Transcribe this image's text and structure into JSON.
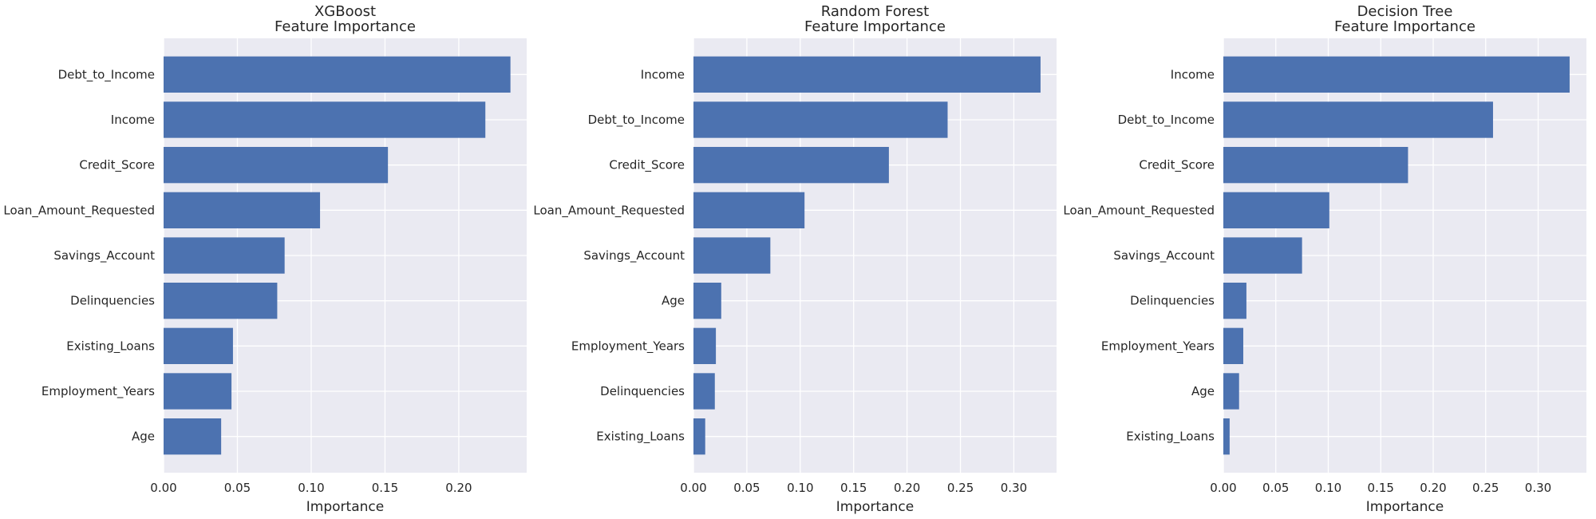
{
  "chart_data": [
    {
      "type": "bar",
      "orientation": "horizontal",
      "title": [
        "XGBoost",
        "Feature Importance"
      ],
      "xlabel": "Importance",
      "ylabel": "",
      "xlim": [
        0,
        0.246
      ],
      "xticks": [
        0.0,
        0.05,
        0.1,
        0.15,
        0.2
      ],
      "xtick_labels": [
        "0.00",
        "0.05",
        "0.10",
        "0.15",
        "0.20"
      ],
      "grid": true,
      "bar_color": "#4c72b0",
      "categories": [
        "Debt_to_Income",
        "Income",
        "Credit_Score",
        "Loan_Amount_Requested",
        "Savings_Account",
        "Delinquencies",
        "Existing_Loans",
        "Employment_Years",
        "Age"
      ],
      "values": [
        0.235,
        0.218,
        0.152,
        0.106,
        0.082,
        0.077,
        0.047,
        0.046,
        0.039
      ]
    },
    {
      "type": "bar",
      "orientation": "horizontal",
      "title": [
        "Random Forest",
        "Feature Importance"
      ],
      "xlabel": "Importance",
      "ylabel": "",
      "xlim": [
        0,
        0.34
      ],
      "xticks": [
        0.0,
        0.05,
        0.1,
        0.15,
        0.2,
        0.25,
        0.3
      ],
      "xtick_labels": [
        "0.00",
        "0.05",
        "0.10",
        "0.15",
        "0.20",
        "0.25",
        "0.30"
      ],
      "grid": true,
      "bar_color": "#4c72b0",
      "categories": [
        "Income",
        "Debt_to_Income",
        "Credit_Score",
        "Loan_Amount_Requested",
        "Savings_Account",
        "Age",
        "Employment_Years",
        "Delinquencies",
        "Existing_Loans"
      ],
      "values": [
        0.325,
        0.238,
        0.183,
        0.104,
        0.072,
        0.026,
        0.021,
        0.02,
        0.011
      ]
    },
    {
      "type": "bar",
      "orientation": "horizontal",
      "title": [
        "Decision Tree",
        "Feature Importance"
      ],
      "xlabel": "Importance",
      "ylabel": "",
      "xlim": [
        0,
        0.346
      ],
      "xticks": [
        0.0,
        0.05,
        0.1,
        0.15,
        0.2,
        0.25,
        0.3
      ],
      "xtick_labels": [
        "0.00",
        "0.05",
        "0.10",
        "0.15",
        "0.20",
        "0.25",
        "0.30"
      ],
      "grid": true,
      "bar_color": "#4c72b0",
      "categories": [
        "Income",
        "Debt_to_Income",
        "Credit_Score",
        "Loan_Amount_Requested",
        "Savings_Account",
        "Delinquencies",
        "Employment_Years",
        "Age",
        "Existing_Loans"
      ],
      "values": [
        0.33,
        0.257,
        0.176,
        0.101,
        0.075,
        0.022,
        0.019,
        0.015,
        0.006
      ]
    }
  ]
}
